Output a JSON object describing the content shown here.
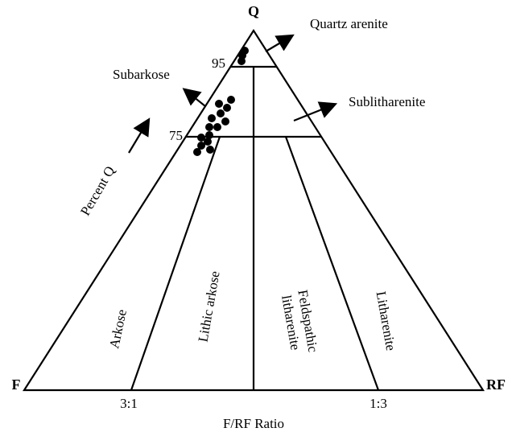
{
  "apex_labels": {
    "top": "Q",
    "left": "F",
    "right": "RF"
  },
  "q_levels": [
    "95",
    "75"
  ],
  "fields": {
    "quartz_arenite": "Quartz arenite",
    "subarkose": "Subarkose",
    "sublitharenite": "Sublitharenite",
    "arkose": "Arkose",
    "lithic_arkose": "Lithic arkose",
    "feldspathic_litharenite": [
      "Feldspathic",
      "litharenite"
    ],
    "litharenite": "Litharenite"
  },
  "axis_labels": {
    "left_side": "Percent Q",
    "bottom": "F/RF Ratio"
  },
  "ratio_ticks": [
    "3:1",
    "1:3"
  ]
}
